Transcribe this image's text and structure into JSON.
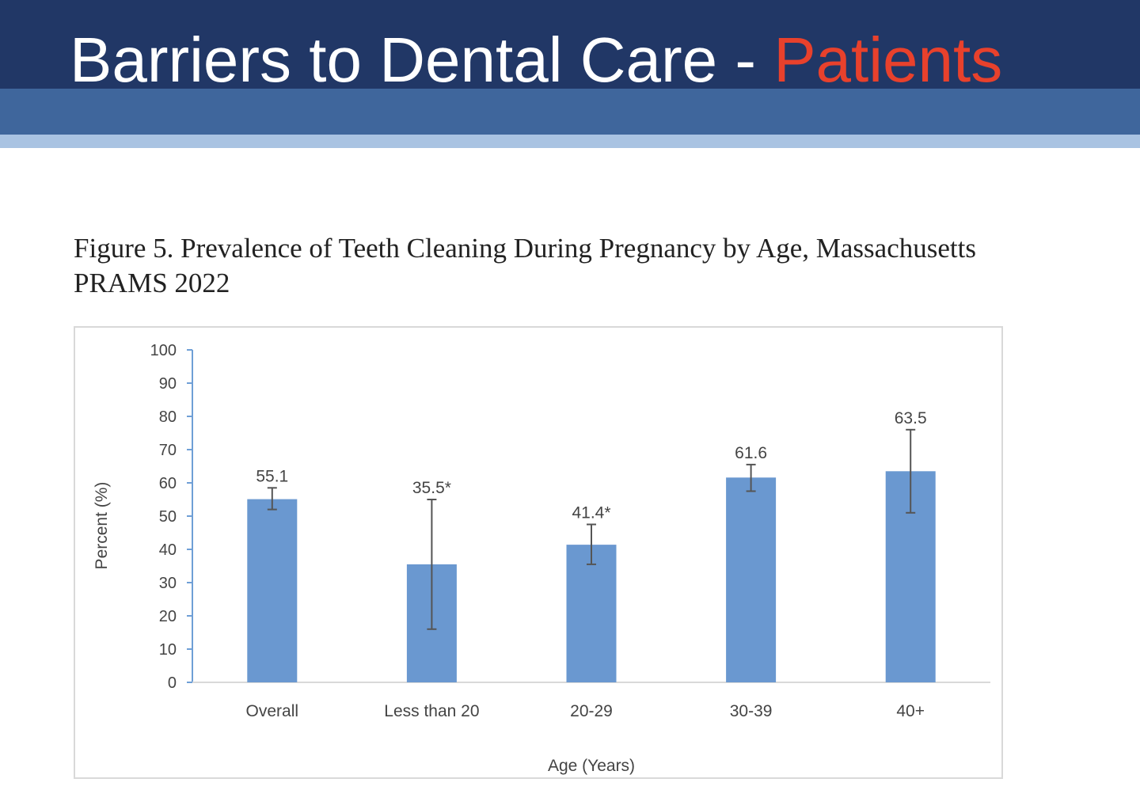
{
  "slide": {
    "title_main": "Barriers to Dental Care - ",
    "title_accent": "Patients",
    "colors": {
      "banner_dark": "#213766",
      "banner_mid": "#3f669c",
      "banner_light": "#a9c3e2",
      "accent": "#e8412c",
      "bar": "#6a98d0"
    }
  },
  "chart_data": {
    "type": "bar",
    "title": "Figure 5. Prevalence of Teeth Cleaning During Pregnancy by Age, Massachusetts PRAMS 2022",
    "categories": [
      "Overall",
      "Less than 20",
      "20-29",
      "30-39",
      "40+"
    ],
    "values": [
      55.1,
      35.5,
      41.4,
      61.6,
      63.5
    ],
    "data_labels": [
      "55.1",
      "35.5*",
      "41.4*",
      "61.6",
      "63.5"
    ],
    "error_low": [
      52.0,
      16.0,
      35.5,
      57.5,
      51.0
    ],
    "error_high": [
      58.5,
      55.0,
      47.5,
      65.5,
      76.0
    ],
    "xlabel": "Age (Years)",
    "ylabel": "Percent (%)",
    "ylim": [
      0,
      100
    ],
    "yticks": [
      0,
      10,
      20,
      30,
      40,
      50,
      60,
      70,
      80,
      90,
      100
    ],
    "grid": false,
    "legend": "none"
  }
}
